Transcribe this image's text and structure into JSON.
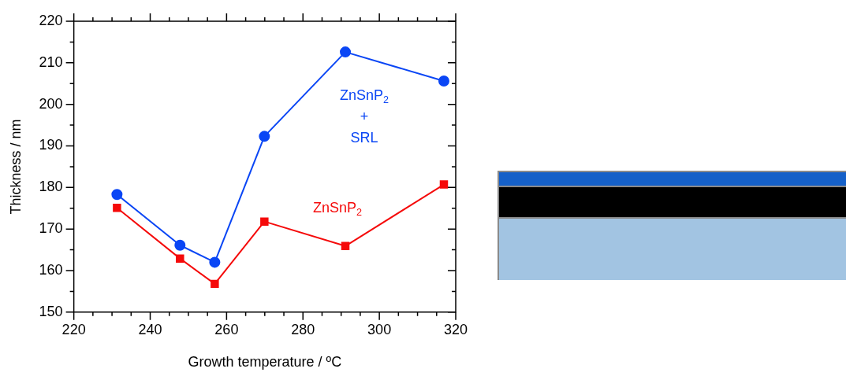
{
  "chart_data": {
    "type": "line",
    "xlabel": "Growth temperature / ºC",
    "ylabel": "Thickness / nm",
    "x": [
      231.3,
      247.8,
      256.9,
      269.9,
      291.1,
      316.9
    ],
    "series": [
      {
        "name": "ZnSnP$_{2}$ + SRL",
        "color": "#0a46f5",
        "marker": "circle",
        "values": [
          178.3,
          166.1,
          162.0,
          192.3,
          212.6,
          205.6
        ]
      },
      {
        "name": "ZnSnP$_{2}$",
        "color": "#f50a0a",
        "marker": "square",
        "values": [
          175.1,
          162.9,
          156.8,
          171.8,
          165.9,
          180.7
        ]
      }
    ],
    "xlim": [
      220,
      320
    ],
    "xticks": [
      220,
      240,
      260,
      280,
      300,
      320
    ],
    "ylim": [
      150,
      220
    ],
    "yticks": [
      150,
      160,
      170,
      180,
      190,
      200,
      210,
      220
    ],
    "grid": false,
    "legend": false
  }
}
